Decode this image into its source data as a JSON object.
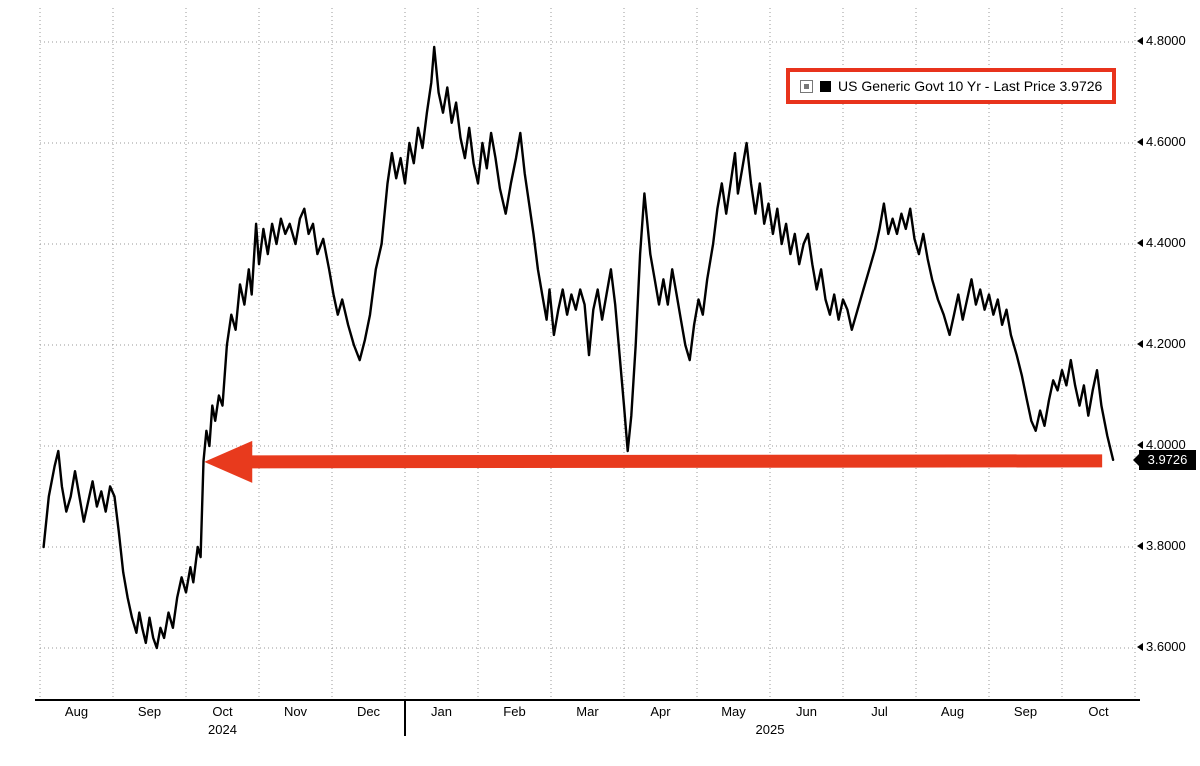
{
  "legend": {
    "label": "US Generic Govt 10 Yr - Last Price 3.9726",
    "border_color": "#e8331c",
    "swatch_color": "#000000",
    "expand_icon": "box-with-dot-icon"
  },
  "price_badge": {
    "value": "3.9726",
    "bg": "#000000",
    "fg": "#ffffff"
  },
  "chart_data": {
    "type": "line",
    "title": "",
    "grid": "dotted",
    "legend_position": "top-right",
    "ylim": [
      3.55,
      4.85
    ],
    "x_range_labels": [
      "Aug 2024",
      "Oct 2025"
    ],
    "y_ticks": [
      {
        "value": 4.8,
        "label": "4.8000"
      },
      {
        "value": 4.6,
        "label": "4.6000"
      },
      {
        "value": 4.4,
        "label": "4.4000"
      },
      {
        "value": 4.2,
        "label": "4.2000"
      },
      {
        "value": 4.0,
        "label": "4.0000"
      },
      {
        "value": 3.8,
        "label": "3.8000"
      },
      {
        "value": 3.6,
        "label": "3.6000"
      }
    ],
    "x_ticks": [
      {
        "label": "Aug",
        "month_index": 0
      },
      {
        "label": "Sep",
        "month_index": 1
      },
      {
        "label": "Oct",
        "month_index": 2
      },
      {
        "label": "Nov",
        "month_index": 3
      },
      {
        "label": "Dec",
        "month_index": 4
      },
      {
        "label": "Jan",
        "month_index": 5
      },
      {
        "label": "Feb",
        "month_index": 6
      },
      {
        "label": "Mar",
        "month_index": 7
      },
      {
        "label": "Apr",
        "month_index": 8
      },
      {
        "label": "May",
        "month_index": 9
      },
      {
        "label": "Jun",
        "month_index": 10
      },
      {
        "label": "Jul",
        "month_index": 11
      },
      {
        "label": "Aug",
        "month_index": 12
      },
      {
        "label": "Sep",
        "month_index": 13
      },
      {
        "label": "Oct",
        "month_index": 14
      }
    ],
    "year_labels": [
      {
        "label": "2024",
        "boundary_index": 2.5
      },
      {
        "label": "2025",
        "boundary_index": 10
      }
    ],
    "year_divider_boundary_index": 5,
    "annotation": {
      "type": "arrow-left",
      "value": 3.9726,
      "color": "#e83a1d",
      "from_month": 14.55,
      "to_month": 2.25
    },
    "series": [
      {
        "name": "US Generic Govt 10 Yr",
        "last_price": 3.9726,
        "color": "#000000",
        "x_unit": "months since 2024-08-01",
        "points": [
          [
            0.05,
            3.8
          ],
          [
            0.12,
            3.9
          ],
          [
            0.2,
            3.96
          ],
          [
            0.25,
            3.99
          ],
          [
            0.3,
            3.92
          ],
          [
            0.36,
            3.87
          ],
          [
            0.42,
            3.9
          ],
          [
            0.48,
            3.95
          ],
          [
            0.54,
            3.9
          ],
          [
            0.6,
            3.85
          ],
          [
            0.66,
            3.89
          ],
          [
            0.72,
            3.93
          ],
          [
            0.78,
            3.88
          ],
          [
            0.84,
            3.91
          ],
          [
            0.9,
            3.87
          ],
          [
            0.96,
            3.92
          ],
          [
            1.02,
            3.9
          ],
          [
            1.08,
            3.83
          ],
          [
            1.14,
            3.75
          ],
          [
            1.2,
            3.7
          ],
          [
            1.26,
            3.66
          ],
          [
            1.32,
            3.63
          ],
          [
            1.36,
            3.67
          ],
          [
            1.4,
            3.64
          ],
          [
            1.45,
            3.61
          ],
          [
            1.5,
            3.66
          ],
          [
            1.55,
            3.62
          ],
          [
            1.6,
            3.6
          ],
          [
            1.65,
            3.64
          ],
          [
            1.7,
            3.62
          ],
          [
            1.76,
            3.67
          ],
          [
            1.82,
            3.64
          ],
          [
            1.88,
            3.7
          ],
          [
            1.94,
            3.74
          ],
          [
            2.0,
            3.71
          ],
          [
            2.06,
            3.76
          ],
          [
            2.1,
            3.73
          ],
          [
            2.16,
            3.8
          ],
          [
            2.2,
            3.78
          ],
          [
            2.24,
            3.97
          ],
          [
            2.28,
            4.03
          ],
          [
            2.32,
            4.0
          ],
          [
            2.36,
            4.08
          ],
          [
            2.4,
            4.05
          ],
          [
            2.45,
            4.1
          ],
          [
            2.5,
            4.08
          ],
          [
            2.56,
            4.2
          ],
          [
            2.62,
            4.26
          ],
          [
            2.68,
            4.23
          ],
          [
            2.74,
            4.32
          ],
          [
            2.8,
            4.28
          ],
          [
            2.86,
            4.35
          ],
          [
            2.9,
            4.3
          ],
          [
            2.96,
            4.44
          ],
          [
            3.0,
            4.36
          ],
          [
            3.06,
            4.43
          ],
          [
            3.12,
            4.38
          ],
          [
            3.18,
            4.44
          ],
          [
            3.24,
            4.4
          ],
          [
            3.3,
            4.45
          ],
          [
            3.36,
            4.42
          ],
          [
            3.42,
            4.44
          ],
          [
            3.5,
            4.4
          ],
          [
            3.56,
            4.45
          ],
          [
            3.62,
            4.47
          ],
          [
            3.68,
            4.42
          ],
          [
            3.74,
            4.44
          ],
          [
            3.8,
            4.38
          ],
          [
            3.88,
            4.41
          ],
          [
            3.96,
            4.35
          ],
          [
            4.02,
            4.3
          ],
          [
            4.08,
            4.26
          ],
          [
            4.14,
            4.29
          ],
          [
            4.22,
            4.24
          ],
          [
            4.3,
            4.2
          ],
          [
            4.38,
            4.17
          ],
          [
            4.45,
            4.21
          ],
          [
            4.52,
            4.26
          ],
          [
            4.6,
            4.35
          ],
          [
            4.68,
            4.4
          ],
          [
            4.76,
            4.52
          ],
          [
            4.82,
            4.58
          ],
          [
            4.88,
            4.53
          ],
          [
            4.94,
            4.57
          ],
          [
            5.0,
            4.52
          ],
          [
            5.06,
            4.6
          ],
          [
            5.12,
            4.56
          ],
          [
            5.18,
            4.63
          ],
          [
            5.24,
            4.59
          ],
          [
            5.3,
            4.66
          ],
          [
            5.36,
            4.72
          ],
          [
            5.4,
            4.79
          ],
          [
            5.46,
            4.7
          ],
          [
            5.52,
            4.66
          ],
          [
            5.58,
            4.71
          ],
          [
            5.64,
            4.64
          ],
          [
            5.7,
            4.68
          ],
          [
            5.76,
            4.61
          ],
          [
            5.82,
            4.57
          ],
          [
            5.88,
            4.63
          ],
          [
            5.94,
            4.56
          ],
          [
            6.0,
            4.52
          ],
          [
            6.06,
            4.6
          ],
          [
            6.12,
            4.55
          ],
          [
            6.18,
            4.62
          ],
          [
            6.24,
            4.57
          ],
          [
            6.3,
            4.51
          ],
          [
            6.38,
            4.46
          ],
          [
            6.45,
            4.52
          ],
          [
            6.52,
            4.57
          ],
          [
            6.58,
            4.62
          ],
          [
            6.64,
            4.54
          ],
          [
            6.7,
            4.48
          ],
          [
            6.76,
            4.42
          ],
          [
            6.82,
            4.35
          ],
          [
            6.88,
            4.3
          ],
          [
            6.94,
            4.25
          ],
          [
            6.98,
            4.31
          ],
          [
            7.04,
            4.22
          ],
          [
            7.1,
            4.27
          ],
          [
            7.16,
            4.31
          ],
          [
            7.22,
            4.26
          ],
          [
            7.28,
            4.3
          ],
          [
            7.34,
            4.27
          ],
          [
            7.4,
            4.31
          ],
          [
            7.46,
            4.28
          ],
          [
            7.52,
            4.18
          ],
          [
            7.58,
            4.27
          ],
          [
            7.64,
            4.31
          ],
          [
            7.7,
            4.25
          ],
          [
            7.76,
            4.3
          ],
          [
            7.82,
            4.35
          ],
          [
            7.88,
            4.28
          ],
          [
            7.94,
            4.18
          ],
          [
            8.0,
            4.08
          ],
          [
            8.05,
            3.99
          ],
          [
            8.1,
            4.06
          ],
          [
            8.16,
            4.2
          ],
          [
            8.22,
            4.38
          ],
          [
            8.28,
            4.5
          ],
          [
            8.32,
            4.44
          ],
          [
            8.36,
            4.38
          ],
          [
            8.42,
            4.33
          ],
          [
            8.48,
            4.28
          ],
          [
            8.54,
            4.33
          ],
          [
            8.6,
            4.28
          ],
          [
            8.66,
            4.35
          ],
          [
            8.72,
            4.3
          ],
          [
            8.78,
            4.25
          ],
          [
            8.84,
            4.2
          ],
          [
            8.9,
            4.17
          ],
          [
            8.96,
            4.24
          ],
          [
            9.02,
            4.29
          ],
          [
            9.08,
            4.26
          ],
          [
            9.14,
            4.33
          ],
          [
            9.22,
            4.4
          ],
          [
            9.28,
            4.47
          ],
          [
            9.34,
            4.52
          ],
          [
            9.4,
            4.46
          ],
          [
            9.46,
            4.52
          ],
          [
            9.52,
            4.58
          ],
          [
            9.56,
            4.5
          ],
          [
            9.62,
            4.55
          ],
          [
            9.68,
            4.6
          ],
          [
            9.74,
            4.52
          ],
          [
            9.8,
            4.46
          ],
          [
            9.86,
            4.52
          ],
          [
            9.92,
            4.44
          ],
          [
            9.98,
            4.48
          ],
          [
            10.04,
            4.42
          ],
          [
            10.1,
            4.47
          ],
          [
            10.16,
            4.4
          ],
          [
            10.22,
            4.44
          ],
          [
            10.28,
            4.38
          ],
          [
            10.34,
            4.42
          ],
          [
            10.4,
            4.36
          ],
          [
            10.46,
            4.4
          ],
          [
            10.52,
            4.42
          ],
          [
            10.58,
            4.36
          ],
          [
            10.64,
            4.31
          ],
          [
            10.7,
            4.35
          ],
          [
            10.76,
            4.29
          ],
          [
            10.82,
            4.26
          ],
          [
            10.88,
            4.3
          ],
          [
            10.94,
            4.25
          ],
          [
            11.0,
            4.29
          ],
          [
            11.06,
            4.27
          ],
          [
            11.12,
            4.23
          ],
          [
            11.2,
            4.27
          ],
          [
            11.28,
            4.31
          ],
          [
            11.36,
            4.35
          ],
          [
            11.44,
            4.39
          ],
          [
            11.5,
            4.43
          ],
          [
            11.56,
            4.48
          ],
          [
            11.62,
            4.42
          ],
          [
            11.68,
            4.45
          ],
          [
            11.74,
            4.42
          ],
          [
            11.8,
            4.46
          ],
          [
            11.86,
            4.43
          ],
          [
            11.92,
            4.47
          ],
          [
            11.98,
            4.41
          ],
          [
            12.04,
            4.38
          ],
          [
            12.1,
            4.42
          ],
          [
            12.16,
            4.37
          ],
          [
            12.22,
            4.33
          ],
          [
            12.3,
            4.29
          ],
          [
            12.38,
            4.26
          ],
          [
            12.46,
            4.22
          ],
          [
            12.52,
            4.26
          ],
          [
            12.58,
            4.3
          ],
          [
            12.64,
            4.25
          ],
          [
            12.7,
            4.29
          ],
          [
            12.76,
            4.33
          ],
          [
            12.82,
            4.28
          ],
          [
            12.88,
            4.31
          ],
          [
            12.94,
            4.27
          ],
          [
            13.0,
            4.3
          ],
          [
            13.06,
            4.26
          ],
          [
            13.12,
            4.29
          ],
          [
            13.18,
            4.24
          ],
          [
            13.24,
            4.27
          ],
          [
            13.3,
            4.22
          ],
          [
            13.38,
            4.18
          ],
          [
            13.45,
            4.14
          ],
          [
            13.52,
            4.09
          ],
          [
            13.58,
            4.05
          ],
          [
            13.64,
            4.03
          ],
          [
            13.7,
            4.07
          ],
          [
            13.76,
            4.04
          ],
          [
            13.82,
            4.09
          ],
          [
            13.88,
            4.13
          ],
          [
            13.94,
            4.11
          ],
          [
            14.0,
            4.15
          ],
          [
            14.06,
            4.12
          ],
          [
            14.12,
            4.17
          ],
          [
            14.18,
            4.12
          ],
          [
            14.24,
            4.08
          ],
          [
            14.3,
            4.12
          ],
          [
            14.36,
            4.06
          ],
          [
            14.42,
            4.11
          ],
          [
            14.48,
            4.15
          ],
          [
            14.54,
            4.08
          ],
          [
            14.62,
            4.02
          ],
          [
            14.7,
            3.9726
          ]
        ]
      }
    ]
  }
}
